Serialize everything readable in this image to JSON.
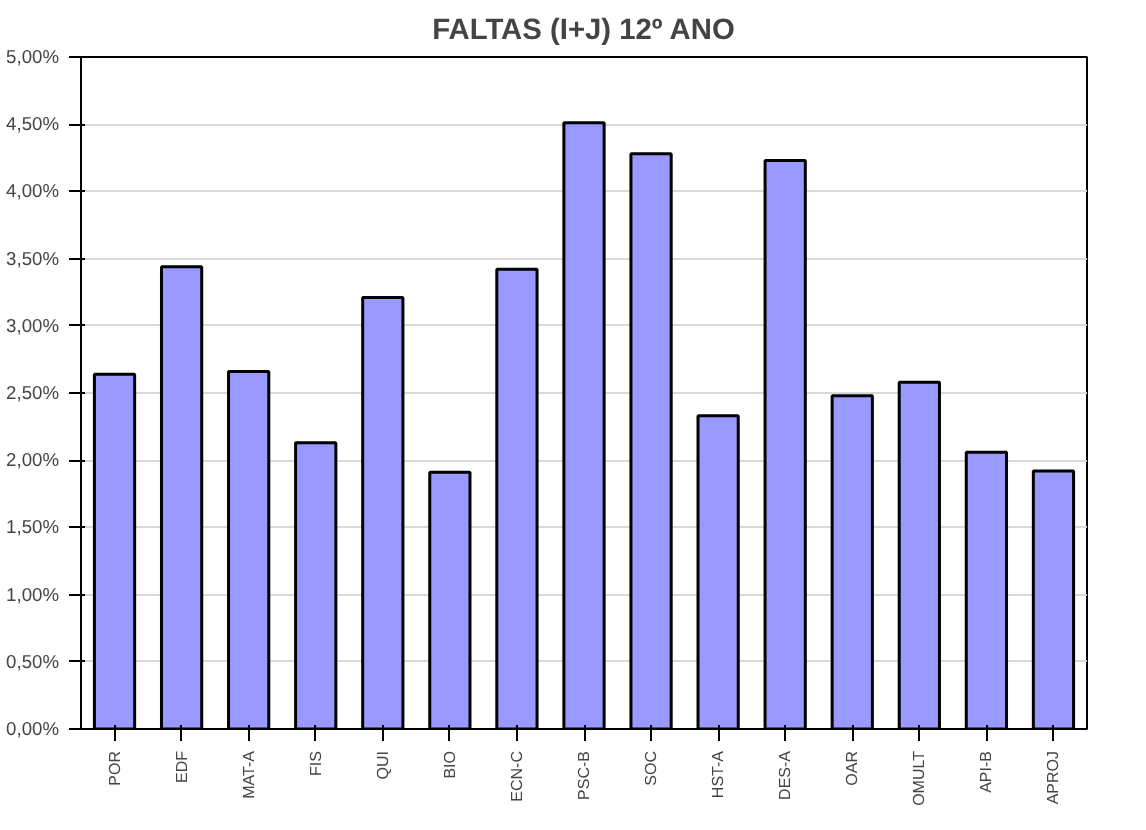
{
  "chart_data": {
    "type": "bar",
    "title": "FALTAS (I+J) 12º ANO",
    "categories": [
      "POR",
      "EDF",
      "MAT-A",
      "FIS",
      "QUI",
      "BIO",
      "ECN-C",
      "PSC-B",
      "SOC",
      "HST-A",
      "DES-A",
      "OAR",
      "OMULT",
      "API-B",
      "APROJ"
    ],
    "values": [
      2.64,
      3.44,
      2.66,
      2.13,
      3.21,
      1.91,
      3.42,
      4.51,
      4.28,
      2.33,
      4.23,
      2.48,
      2.58,
      2.06,
      1.92
    ],
    "color": "#9999ff",
    "ylim": [
      0,
      5
    ],
    "yticks": [
      {
        "value": 0,
        "label": "0,00%"
      },
      {
        "value": 0.5,
        "label": "0,50%"
      },
      {
        "value": 1,
        "label": "1,00%"
      },
      {
        "value": 1.5,
        "label": "1,50%"
      },
      {
        "value": 2,
        "label": "2,00%"
      },
      {
        "value": 2.5,
        "label": "2,50%"
      },
      {
        "value": 3,
        "label": "3,00%"
      },
      {
        "value": 3.5,
        "label": "3,50%"
      },
      {
        "value": 4,
        "label": "4,00%"
      },
      {
        "value": 4.5,
        "label": "4,50%"
      },
      {
        "value": 5,
        "label": "5,00%"
      }
    ],
    "grid": "y"
  }
}
